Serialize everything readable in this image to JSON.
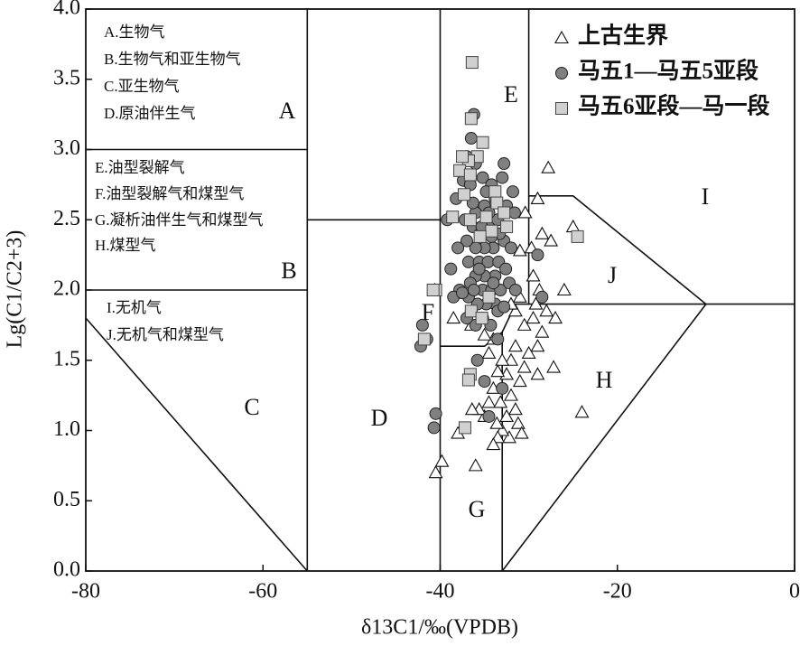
{
  "chart_data": {
    "type": "scatter",
    "xlabel": "δ13C1/‰(VPDB)",
    "ylabel": "Lg(C1/C2+3)",
    "xlim": [
      -80,
      0
    ],
    "ylim": [
      0,
      4
    ],
    "xticks": [
      -80,
      -60,
      -40,
      -20,
      0
    ],
    "yticks": [
      {
        "value": 0,
        "label": "0.0"
      },
      0.5,
      {
        "value": 1,
        "label": "1.0"
      },
      1.5,
      {
        "value": 2,
        "label": "2.0"
      },
      2.5,
      {
        "value": 3,
        "label": "3.0"
      },
      3.5,
      {
        "value": 4,
        "label": "4.0"
      }
    ],
    "legend": "upper right",
    "regions": [
      "A",
      "B",
      "C",
      "D",
      "E",
      "F",
      "G",
      "H",
      "I",
      "J"
    ],
    "region_notes": [
      "A.生物气",
      "B.生物气和亚生物气",
      "C.亚生物气",
      "D.原油伴生气",
      "E.油型裂解气",
      "F.油型裂解气和煤型气",
      "G.凝析油伴生气和煤型气",
      "H.煤型气",
      "I.无机气",
      "J.无机气和煤型气"
    ],
    "series": [
      {
        "name": "上古生界",
        "marker": "triangle",
        "color": "#ffffff",
        "x": [
          -27.8,
          -29,
          -28.5,
          -27.5,
          -25,
          -29.5,
          -28.8,
          -29.2,
          -31,
          -31.5,
          -30.5,
          -29.5,
          -28,
          -27,
          -26,
          -28.5,
          -29,
          -30,
          -31.5,
          -32,
          -30.5,
          -29,
          -27.2,
          -31,
          -32.5,
          -33,
          -33.5,
          -34,
          -32,
          -31.5,
          -32.5,
          -31.2,
          -30.8,
          -32.2,
          -33,
          -33.5,
          -34,
          -33.6,
          -35,
          -35.6,
          -34.5,
          -33.2,
          -36.4,
          -40.5,
          -39.8,
          -38,
          -36,
          -40.6,
          -38.5,
          -36.5,
          -34,
          -34.5,
          -24,
          -32,
          -35,
          -31,
          -29.7,
          -30.4
        ],
        "y": [
          2.87,
          2.65,
          2.4,
          2.35,
          2.45,
          2.1,
          2.0,
          1.9,
          1.95,
          1.85,
          1.75,
          1.8,
          1.85,
          1.8,
          2.0,
          1.7,
          1.6,
          1.55,
          1.6,
          1.5,
          1.45,
          1.4,
          1.45,
          1.35,
          1.4,
          1.5,
          1.42,
          1.3,
          1.25,
          1.15,
          1.1,
          1.05,
          0.98,
          0.95,
          1.0,
          0.95,
          0.9,
          1.05,
          1.1,
          1.15,
          1.2,
          1.2,
          1.15,
          0.7,
          0.78,
          0.98,
          0.75,
          2.0,
          1.8,
          1.75,
          1.65,
          1.55,
          1.13,
          1.9,
          1.68,
          2.28,
          2.3,
          2.55
        ]
      },
      {
        "name": "马五1—马五5亚段",
        "marker": "circle",
        "color": "#808080",
        "x": [
          -36.2,
          -36.5,
          -37,
          -36,
          -37.4,
          -36.6,
          -35.2,
          -34.2,
          -33,
          -32.5,
          -33.8,
          -35,
          -36,
          -37.2,
          -36.3,
          -35.5,
          -34.5,
          -33.5,
          -32.8,
          -34,
          -35,
          -36,
          -37,
          -36.8,
          -35.6,
          -34.6,
          -33.4,
          -32.6,
          -33.8,
          -35,
          -36,
          -36.6,
          -35.2,
          -34.2,
          -33.2,
          -32.2,
          -31.5,
          -33.8,
          -34.8,
          -35.8,
          -36.8,
          -37.8,
          -36.5,
          -35.2,
          -34.3,
          -36,
          -37,
          -38.5,
          -38.8,
          -38,
          -39.2,
          -38.2,
          -34.5,
          -33.3,
          -32.8,
          -29,
          -28.5,
          -32,
          -31.6,
          -31.8,
          -42,
          -42.2,
          -41.5,
          -40.5,
          -40.7,
          -35.8,
          -34.5,
          -33,
          -33.5,
          -35,
          -37.5,
          -36.3,
          -34.8,
          -35.6,
          -33.5,
          -32.8,
          -34,
          -36.2,
          -35.3,
          -34.2
        ],
        "y": [
          3.25,
          3.08,
          2.95,
          2.9,
          2.78,
          2.75,
          2.8,
          2.75,
          2.8,
          2.6,
          2.65,
          2.6,
          2.55,
          2.5,
          2.45,
          2.4,
          2.45,
          2.5,
          2.35,
          2.3,
          2.3,
          2.3,
          2.35,
          2.2,
          2.2,
          2.2,
          2.2,
          2.15,
          2.1,
          2.1,
          2.1,
          2.05,
          2.0,
          2.0,
          2.0,
          2.05,
          2.0,
          1.9,
          1.9,
          1.9,
          1.95,
          2.0,
          1.85,
          1.8,
          1.75,
          1.75,
          1.8,
          1.95,
          2.15,
          2.3,
          2.5,
          2.65,
          2.55,
          2.4,
          2.9,
          2.25,
          1.95,
          2.3,
          2.55,
          2.7,
          1.75,
          1.6,
          1.65,
          1.12,
          1.02,
          1.5,
          1.1,
          1.3,
          1.65,
          1.35,
          1.98,
          2.62,
          2.7,
          2.15,
          1.85,
          1.88,
          2.05,
          2.0,
          2.45,
          2.38
        ]
      },
      {
        "name": "马五6亚段—马一段",
        "marker": "square",
        "color": "#d0d0d0",
        "x": [
          -36.4,
          -36.5,
          -35.2,
          -35.8,
          -36.8,
          -37.5,
          -37.8,
          -36.6,
          -37.3,
          -33.8,
          -33.6,
          -32.8,
          -34.8,
          -36.6,
          -38.6,
          -34.2,
          -35.5,
          -32.5,
          -24.5,
          -40.5,
          -40.8,
          -34.5,
          -36.5,
          -35.3,
          -41.8,
          -36.6,
          -36.8,
          -37.2
        ],
        "y": [
          3.62,
          3.22,
          3.05,
          2.95,
          2.92,
          2.95,
          2.85,
          2.82,
          2.68,
          2.7,
          2.62,
          2.55,
          2.52,
          2.5,
          2.52,
          2.42,
          2.38,
          2.45,
          2.38,
          2.0,
          2.0,
          1.95,
          1.85,
          1.8,
          1.65,
          1.4,
          1.36,
          1.02
        ]
      }
    ]
  }
}
